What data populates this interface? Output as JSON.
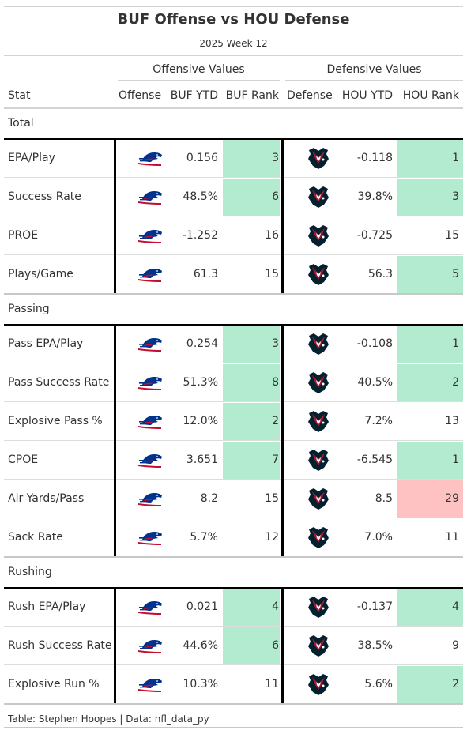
{
  "header": {
    "title": "BUF Offense vs HOU Defense",
    "subtitle": "2025 Week 12"
  },
  "spanners": {
    "offense": "Offensive Values",
    "defense": "Defensive Values"
  },
  "columns": {
    "stat": "Stat",
    "offense": "Offense",
    "off_ytd": "BUF YTD",
    "off_rank": "BUF Rank",
    "defense": "Defense",
    "def_ytd": "HOU YTD",
    "def_rank": "HOU Rank"
  },
  "colors": {
    "good_rank": "#b3ebd0",
    "bad_rank": "#ffc2c2",
    "bills_blue": "#00338d",
    "bills_red": "#c60c30",
    "texans_navy": "#03202f",
    "texans_red": "#a71930"
  },
  "icons": {
    "offense": "bills-logo-icon",
    "defense": "texans-logo-icon"
  },
  "footer": "Table: Stephen Hoopes | Data: nfl_data_py",
  "chart_data": {
    "type": "table",
    "groups": [
      {
        "name": "Total",
        "rows": [
          {
            "stat": "EPA/Play",
            "off_ytd": "0.156",
            "off_rank": 3,
            "def_ytd": "-0.118",
            "def_rank": 1
          },
          {
            "stat": "Success Rate",
            "off_ytd": "48.5%",
            "off_rank": 6,
            "def_ytd": "39.8%",
            "def_rank": 3
          },
          {
            "stat": "PROE",
            "off_ytd": "-1.252",
            "off_rank": 16,
            "def_ytd": "-0.725",
            "def_rank": 15
          },
          {
            "stat": "Plays/Game",
            "off_ytd": "61.3",
            "off_rank": 15,
            "def_ytd": "56.3",
            "def_rank": 5
          }
        ]
      },
      {
        "name": "Passing",
        "rows": [
          {
            "stat": "Pass EPA/Play",
            "off_ytd": "0.254",
            "off_rank": 3,
            "def_ytd": "-0.108",
            "def_rank": 1
          },
          {
            "stat": "Pass Success Rate",
            "off_ytd": "51.3%",
            "off_rank": 8,
            "def_ytd": "40.5%",
            "def_rank": 2
          },
          {
            "stat": "Explosive Pass %",
            "off_ytd": "12.0%",
            "off_rank": 2,
            "def_ytd": "7.2%",
            "def_rank": 13
          },
          {
            "stat": "CPOE",
            "off_ytd": "3.651",
            "off_rank": 7,
            "def_ytd": "-6.545",
            "def_rank": 1
          },
          {
            "stat": "Air Yards/Pass",
            "off_ytd": "8.2",
            "off_rank": 15,
            "def_ytd": "8.5",
            "def_rank": 29
          },
          {
            "stat": "Sack Rate",
            "off_ytd": "5.7%",
            "off_rank": 12,
            "def_ytd": "7.0%",
            "def_rank": 11
          }
        ]
      },
      {
        "name": "Rushing",
        "rows": [
          {
            "stat": "Rush EPA/Play",
            "off_ytd": "0.021",
            "off_rank": 4,
            "def_ytd": "-0.137",
            "def_rank": 4
          },
          {
            "stat": "Rush Success Rate",
            "off_ytd": "44.6%",
            "off_rank": 6,
            "def_ytd": "38.5%",
            "def_rank": 9
          },
          {
            "stat": "Explosive Run %",
            "off_ytd": "10.3%",
            "off_rank": 11,
            "def_ytd": "5.6%",
            "def_rank": 2
          }
        ]
      }
    ]
  }
}
